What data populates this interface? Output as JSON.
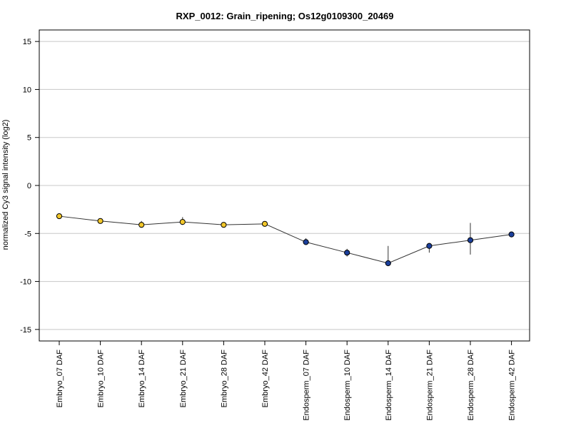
{
  "chart_data": {
    "type": "line",
    "title": "RXP_0012: Grain_ripening; Os12g0109300_20469",
    "xlabel": "",
    "ylabel": "normalized Cy3 signal intensity (log2)",
    "ylim": [
      -16.2,
      16.2
    ],
    "yticks": [
      -15,
      -10,
      -5,
      0,
      5,
      10,
      15
    ],
    "grid": "horizontal",
    "categories": [
      "Embryo_07 DAF",
      "Embryo_10 DAF",
      "Embryo_14 DAF",
      "Embryo_21 DAF",
      "Embryo_28 DAF",
      "Embryo_42 DAF",
      "Endosperm_07 DAF",
      "Endosperm_10 DAF",
      "Endosperm_14 DAF",
      "Endosperm_21 DAF",
      "Endosperm_28 DAF",
      "Endosperm_42 DAF"
    ],
    "series": [
      {
        "values": [
          -3.2,
          -3.7,
          -4.1,
          -3.8,
          -4.1,
          -4.0,
          -5.9,
          -7.0,
          -8.1,
          -6.3,
          -5.7,
          -5.1
        ],
        "err_low": [
          -3.3,
          -3.8,
          -4.4,
          -4.1,
          -4.2,
          -4.1,
          -6.2,
          -7.4,
          -8.2,
          -7.0,
          -7.2,
          -5.2
        ],
        "err_high": [
          -3.1,
          -3.6,
          -3.7,
          -3.3,
          -4.0,
          -3.9,
          -5.5,
          -6.6,
          -6.3,
          -6.0,
          -3.9,
          -5.0
        ],
        "point_colors": [
          "#f2c72a",
          "#f2c72a",
          "#f2c72a",
          "#f2c72a",
          "#f2c72a",
          "#f2c72a",
          "#1b3f9c",
          "#1b3f9c",
          "#1b3f9c",
          "#1b3f9c",
          "#1b3f9c",
          "#1b3f9c"
        ]
      }
    ],
    "colors": {
      "line": "#333333",
      "grid": "#c8c8c8",
      "embryo": "#f2c72a",
      "endosperm": "#1b3f9c"
    }
  }
}
